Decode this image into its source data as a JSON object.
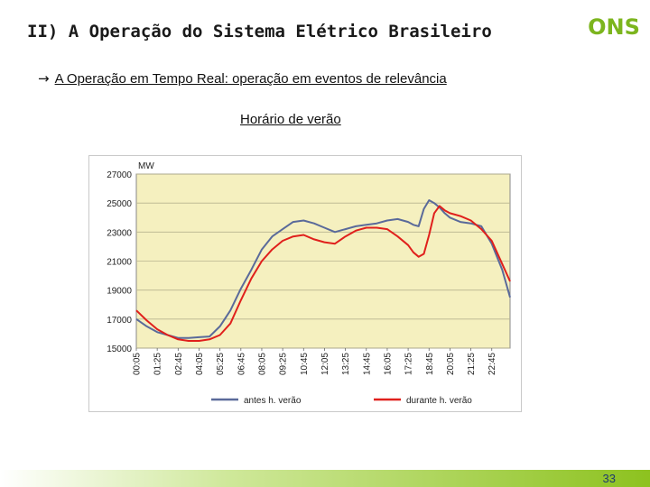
{
  "slide": {
    "title": "II) A Operação do Sistema Elétrico Brasileiro",
    "logo_text": "ONS",
    "bullet_arrow": "→",
    "bullet_text": "A Operação em Tempo Real: operação em eventos de relevância",
    "subheading": "Horário de verão",
    "page_number": "33"
  },
  "colors": {
    "plot_background": "#f5f0bf",
    "series_before": "#5a6a9a",
    "series_during": "#e0201c",
    "logo_green": "#7cb51e",
    "footer_green": "#8dc21f"
  },
  "chart_data": {
    "type": "line",
    "y_unit_label": "MW",
    "ylim": [
      15000,
      27000
    ],
    "y_ticks": [
      "15000",
      "17000",
      "19000",
      "21000",
      "23000",
      "25000",
      "27000"
    ],
    "x_ticks": [
      "00:05",
      "01:25",
      "02:45",
      "04:05",
      "05:25",
      "06:45",
      "08:05",
      "09:25",
      "10:45",
      "12:05",
      "13:25",
      "14:45",
      "16:05",
      "17:25",
      "18:45",
      "20:05",
      "21:25",
      "22:45"
    ],
    "x": [
      "00:05",
      "00:45",
      "01:25",
      "02:05",
      "02:45",
      "03:25",
      "04:05",
      "04:45",
      "05:25",
      "06:05",
      "06:45",
      "07:25",
      "08:05",
      "08:45",
      "09:25",
      "10:05",
      "10:45",
      "11:25",
      "12:05",
      "12:45",
      "13:25",
      "14:05",
      "14:45",
      "15:25",
      "16:05",
      "16:45",
      "17:25",
      "17:45",
      "18:05",
      "18:25",
      "18:45",
      "19:05",
      "19:25",
      "19:45",
      "20:05",
      "20:45",
      "21:25",
      "22:05",
      "22:45",
      "23:25",
      "23:55"
    ],
    "grid": true,
    "legend_position": "bottom",
    "series": [
      {
        "name": "antes h. verão",
        "color": "#5a6a9a",
        "values": [
          17000,
          16500,
          16100,
          15900,
          15700,
          15700,
          15750,
          15800,
          16500,
          17600,
          19100,
          20400,
          21800,
          22700,
          23200,
          23700,
          23800,
          23600,
          23300,
          23000,
          23200,
          23400,
          23500,
          23600,
          23800,
          23900,
          23700,
          23500,
          23400,
          24600,
          25200,
          25000,
          24700,
          24300,
          24000,
          23700,
          23600,
          23400,
          22200,
          20400,
          18500
        ]
      },
      {
        "name": "durante h. verão",
        "color": "#e0201c",
        "values": [
          17600,
          16900,
          16300,
          15900,
          15600,
          15500,
          15500,
          15600,
          15900,
          16700,
          18300,
          19800,
          21000,
          21800,
          22400,
          22700,
          22800,
          22500,
          22300,
          22200,
          22700,
          23100,
          23300,
          23300,
          23200,
          22700,
          22100,
          21600,
          21300,
          21500,
          22800,
          24300,
          24800,
          24500,
          24300,
          24100,
          23800,
          23200,
          22400,
          20800,
          19600
        ]
      }
    ]
  }
}
